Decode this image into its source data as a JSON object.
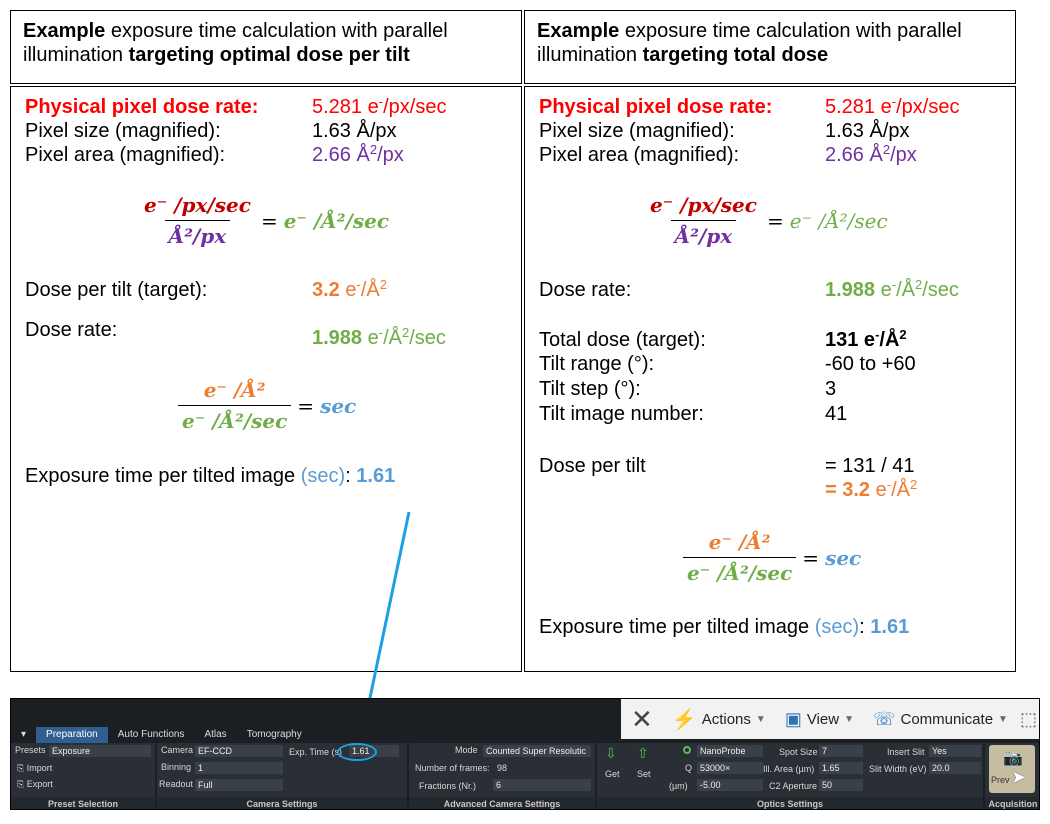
{
  "left": {
    "header": {
      "bold1": "Example",
      "text1": " exposure time calculation   with parallel illumination ",
      "bold2": "targeting optimal dose per tilt"
    },
    "phys_label": "Physical pixel dose rate:",
    "phys_value": "5.281 e",
    "phys_unit": "/px/sec",
    "size_label": "Pixel size (magnified):",
    "size_value": "1.63 Å/px",
    "area_label": "Pixel area (magnified):",
    "area_value": "2.66 Å",
    "area_unit": "/px",
    "eq1_num": "e⁻ /px/sec",
    "eq1_den": "Å²/px",
    "eq1_rhs": "e⁻ /Å²/sec",
    "dpt_label": "Dose per tilt (target):",
    "dpt_value": "3.2",
    "dpt_unit": " e",
    "dpt_unit2": "/Å",
    "rate_label": "Dose rate:",
    "rate_value": "1.988",
    "rate_unit": " e",
    "rate_unit2": "/Å",
    "rate_unit3": "/sec",
    "eq2_num": "e⁻ /Å²",
    "eq2_den": "e⁻ /Å²/sec",
    "eq2_rhs": "sec",
    "exp_label": "Exposure time per tilted image ",
    "exp_unit": "(sec)",
    "exp_colon": ": ",
    "exp_value": "1.61"
  },
  "right": {
    "header": {
      "bold1": "Example",
      "text1": " exposure time calculation with parallel illumination ",
      "bold2": "targeting total dose"
    },
    "phys_label": "Physical pixel dose rate:",
    "phys_value": "5.281 e",
    "phys_unit": "/px/sec",
    "size_label": "Pixel size (magnified):",
    "size_value": "1.63 Å/px",
    "area_label": "Pixel area (magnified):",
    "area_value": "2.66 Å",
    "area_unit": "/px",
    "eq1_num": "e⁻ /px/sec",
    "eq1_den": "Å²/px",
    "eq1_rhs": "e⁻ /Å²/sec",
    "rate_label": "Dose rate:",
    "rate_value": "1.988",
    "rate_unit": " e",
    "rate_unit2": "/Å",
    "rate_unit3": "/sec",
    "total_label": "Total dose (target):",
    "total_value": "131 e",
    "total_unit": "/Å",
    "range_label": "Tilt range (°):",
    "range_value": "-60 to +60",
    "step_label": "Tilt step (°):",
    "step_value": "3",
    "num_label": "Tilt image number:",
    "num_value": "41",
    "dpt_label": "Dose per tilt",
    "dpt_calc": "= 131 / 41",
    "dpt_result": "= 3.2",
    "dpt_unit": " e",
    "dpt_unit2": "/Å",
    "eq2_num": "e⁻ /Å²",
    "eq2_den": "e⁻ /Å²/sec",
    "eq2_rhs": "sec",
    "exp_label": "Exposure time per tilted image ",
    "exp_unit": "(sec)",
    "exp_colon": ": ",
    "exp_value": "1.61"
  },
  "ui": {
    "toolbar": {
      "actions": "Actions",
      "view": "View",
      "communicate": "Communicate"
    },
    "tabs": [
      "Preparation",
      "Auto Functions",
      "Atlas",
      "Tomography"
    ],
    "preset": {
      "presets_label": "Presets",
      "presets_value": "Exposure",
      "import": "Import",
      "export": "Export",
      "footer": "Preset Selection"
    },
    "camera": {
      "camera_label": "Camera",
      "camera_value": "EF-CCD",
      "binning_label": "Binning",
      "binning_value": "1",
      "readout_label": "Readout",
      "readout_value": "Full",
      "exp_label": "Exp. Time (s)",
      "exp_value": "1.61",
      "footer": "Camera Settings"
    },
    "advanced": {
      "mode_label": "Mode",
      "mode_value": "Counted Super Resolutic",
      "frames_label": "Number of frames:",
      "frames_value": "98",
      "fractions_label": "Fractions (Nr.)",
      "fractions_value": "6",
      "footer": "Advanced Camera Settings"
    },
    "optics": {
      "get": "Get",
      "set": "Set",
      "probe_value": "NanoProbe",
      "mag_label": "Q",
      "mag_value": "53000×",
      "defocus_label": "(µm)",
      "defocus_value": "-5.00",
      "spot_label": "Spot Size",
      "spot_value": "7",
      "area_label": "Ill. Area (µm)",
      "area_value": "1.65",
      "c2_label": "C2 Aperture",
      "c2_value": "50",
      "slit_label": "Insert Slit",
      "slit_value": "Yes",
      "width_label": "Slit Width (eV)",
      "width_value": "20.0",
      "footer": "Optics Settings"
    },
    "acquisition": {
      "preview": "Prev",
      "footer": "Acquisition"
    }
  },
  "colors": {
    "red": "#ff0000",
    "purple": "#7030a0",
    "green": "#70ad47",
    "orange": "#ed7d31",
    "blue": "#5b9bd5",
    "arrow": "#1ba1e2"
  }
}
